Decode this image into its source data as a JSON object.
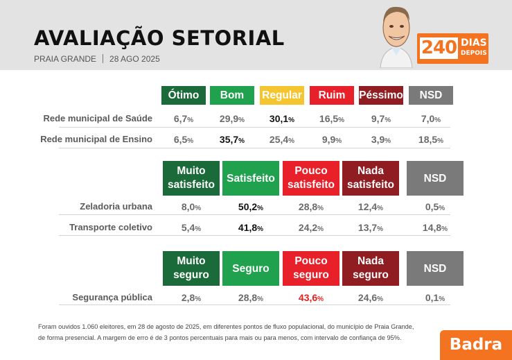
{
  "header": {
    "title": "AVALIAÇÃO SETORIAL",
    "location": "PRAIA GRANDE",
    "date": "28 AGO 2025",
    "badge": {
      "number": "240",
      "line1": "DIAS",
      "line2": "DEPOIS"
    }
  },
  "colors": {
    "dark_green": "#1b6b3a",
    "green": "#1fa14e",
    "yellow": "#f5c530",
    "red": "#e8202a",
    "dark_red": "#8f1d22",
    "gray": "#7a7a7a",
    "orange": "#f47321"
  },
  "chart_data": [
    {
      "type": "table",
      "columns": [
        {
          "label": "Ótimo",
          "lines": [
            "Ótimo"
          ],
          "color": "#1b6b3a"
        },
        {
          "label": "Bom",
          "lines": [
            "Bom"
          ],
          "color": "#1fa14e"
        },
        {
          "label": "Regular",
          "lines": [
            "Regular"
          ],
          "color": "#f5c530"
        },
        {
          "label": "Ruim",
          "lines": [
            "Ruim"
          ],
          "color": "#e8202a"
        },
        {
          "label": "Péssimo",
          "lines": [
            "Péssimo"
          ],
          "color": "#8f1d22"
        },
        {
          "label": "NSD",
          "lines": [
            "NSD"
          ],
          "color": "#7a7a7a"
        }
      ],
      "rows": [
        {
          "label": "Rede municipal de Saúde",
          "values": [
            "6,7",
            "29,9",
            "30,1",
            "16,5",
            "9,7",
            "7,0"
          ],
          "highlight": 2
        },
        {
          "label": "Rede municipal de Ensino",
          "values": [
            "6,5",
            "35,7",
            "25,4",
            "9,9",
            "3,9",
            "18,5"
          ],
          "highlight": 1
        }
      ]
    },
    {
      "type": "table",
      "columns": [
        {
          "label": "Muito satisfeito",
          "lines": [
            "Muito",
            "satisfeito"
          ],
          "color": "#1b6b3a"
        },
        {
          "label": "Satisfeito",
          "lines": [
            "Satisfeito"
          ],
          "color": "#1fa14e"
        },
        {
          "label": "Pouco satisfeito",
          "lines": [
            "Pouco",
            "satisfeito"
          ],
          "color": "#e8202a"
        },
        {
          "label": "Nada satisfeito",
          "lines": [
            "Nada",
            "satisfeito"
          ],
          "color": "#8f1d22"
        },
        {
          "label": "NSD",
          "lines": [
            "NSD"
          ],
          "color": "#7a7a7a"
        }
      ],
      "rows": [
        {
          "label": "Zeladoria urbana",
          "values": [
            "8,0",
            "50,2",
            "28,8",
            "12,4",
            "0,5"
          ],
          "highlight": 1
        },
        {
          "label": "Transporte coletivo",
          "values": [
            "5,4",
            "41,8",
            "24,2",
            "13,7",
            "14,8"
          ],
          "highlight": 1
        }
      ]
    },
    {
      "type": "table",
      "columns": [
        {
          "label": "Muito seguro",
          "lines": [
            "Muito",
            "seguro"
          ],
          "color": "#1b6b3a"
        },
        {
          "label": "Seguro",
          "lines": [
            "Seguro"
          ],
          "color": "#1fa14e"
        },
        {
          "label": "Pouco seguro",
          "lines": [
            "Pouco",
            "seguro"
          ],
          "color": "#e8202a"
        },
        {
          "label": "Nada seguro",
          "lines": [
            "Nada",
            "seguro"
          ],
          "color": "#8f1d22"
        },
        {
          "label": "NSD",
          "lines": [
            "NSD"
          ],
          "color": "#7a7a7a"
        }
      ],
      "rows": [
        {
          "label": "Segurança pública",
          "values": [
            "2,8",
            "28,8",
            "43,6",
            "24,6",
            "0,1"
          ],
          "highlight": 2,
          "highlight_color": "red"
        }
      ]
    }
  ],
  "footnote": {
    "line1": "Foram ouvidos 1.060 eleitores, em 28 de agosto de 2025, em diferentes pontos de fluxo populacional, do município de Praia Grande,",
    "line2": "de forma presencial. A margem de erro é de 3 pontos percentuais para mais ou para menos, com intervalo de confiança de 95%."
  },
  "brand": "Badra"
}
